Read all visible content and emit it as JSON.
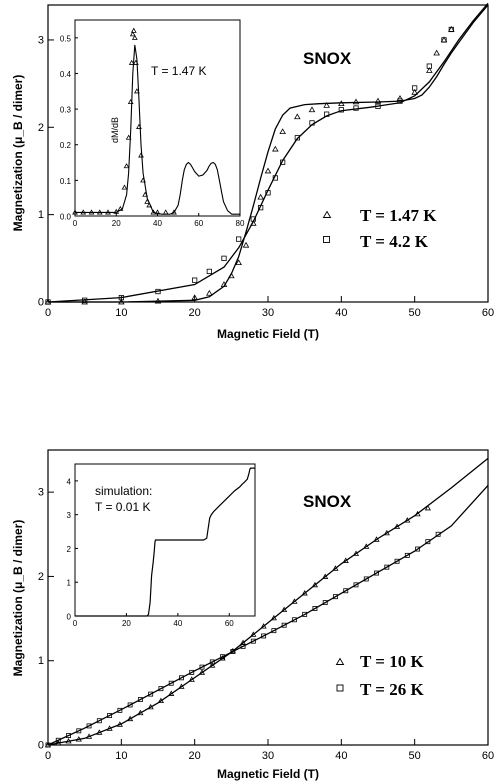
{
  "chart_data": [
    {
      "type": "scatter",
      "title": "SNOX",
      "xlabel": "Magnetic Field (T)",
      "ylabel": "Magnetization (μ_B / dimer)",
      "xlim": [
        0,
        60
      ],
      "ylim": [
        0,
        3.4
      ],
      "xticks": [
        0,
        10,
        20,
        30,
        40,
        50,
        60
      ],
      "yticks": [
        0,
        1,
        2,
        3
      ],
      "legend_position": "right",
      "series": [
        {
          "name": "T = 1.47 K",
          "marker": "triangle",
          "x": [
            0,
            5,
            10,
            15,
            20,
            22,
            24,
            25,
            26,
            27,
            28,
            29,
            30,
            31,
            32,
            34,
            36,
            38,
            40,
            42,
            45,
            48,
            50,
            52,
            53,
            54,
            55
          ],
          "y": [
            0,
            0,
            0,
            0.01,
            0.05,
            0.1,
            0.2,
            0.3,
            0.45,
            0.65,
            0.9,
            1.2,
            1.5,
            1.75,
            1.95,
            2.12,
            2.2,
            2.25,
            2.27,
            2.29,
            2.3,
            2.33,
            2.4,
            2.65,
            2.85,
            3.0,
            3.12
          ]
        },
        {
          "name": "T = 4.2 K",
          "marker": "square",
          "x": [
            0,
            5,
            10,
            15,
            20,
            22,
            24,
            26,
            28,
            29,
            30,
            31,
            32,
            34,
            36,
            38,
            40,
            42,
            45,
            48,
            50,
            52,
            54,
            55
          ],
          "y": [
            0,
            0.02,
            0.05,
            0.12,
            0.25,
            0.35,
            0.5,
            0.72,
            0.95,
            1.08,
            1.25,
            1.42,
            1.6,
            1.88,
            2.05,
            2.15,
            2.2,
            2.22,
            2.24,
            2.3,
            2.45,
            2.7,
            3.0,
            3.12
          ]
        }
      ],
      "fit_curves": [
        {
          "x": [
            0,
            10,
            20,
            22,
            24,
            25,
            26,
            27,
            28,
            29,
            30,
            31,
            32,
            33,
            35,
            37,
            40,
            45,
            48,
            50,
            51,
            52,
            53,
            54,
            55,
            56,
            58,
            60
          ],
          "y": [
            0,
            0,
            0.02,
            0.06,
            0.18,
            0.32,
            0.52,
            0.8,
            1.1,
            1.42,
            1.72,
            1.98,
            2.14,
            2.22,
            2.26,
            2.27,
            2.28,
            2.29,
            2.3,
            2.33,
            2.37,
            2.46,
            2.58,
            2.72,
            2.85,
            2.97,
            3.2,
            3.4
          ]
        },
        {
          "x": [
            0,
            10,
            20,
            24,
            26,
            28,
            30,
            32,
            34,
            36,
            38,
            40,
            44,
            48,
            50,
            52,
            54,
            56,
            58,
            60
          ],
          "y": [
            0,
            0.05,
            0.2,
            0.4,
            0.62,
            0.92,
            1.28,
            1.62,
            1.87,
            2.03,
            2.13,
            2.19,
            2.23,
            2.28,
            2.36,
            2.52,
            2.75,
            3.0,
            3.22,
            3.42
          ]
        }
      ],
      "inset": {
        "type": "scatter",
        "text": "T = 1.47 K",
        "ylabel": "dM/dB",
        "xlim": [
          0,
          80
        ],
        "ylim": [
          0,
          0.55
        ],
        "xticks": [
          0,
          20,
          40,
          60,
          80
        ],
        "yticks": [
          0.0,
          0.1,
          0.2,
          0.3,
          0.4,
          0.5
        ],
        "points": {
          "x": [
            0,
            4,
            8,
            12,
            16,
            20,
            22,
            24,
            25,
            26,
            27,
            27.5,
            28,
            28.5,
            29,
            29.5,
            30,
            31,
            32,
            33,
            34,
            35,
            36,
            38,
            40,
            44,
            48
          ],
          "y": [
            0.01,
            0.01,
            0.01,
            0.01,
            0.01,
            0.012,
            0.02,
            0.08,
            0.14,
            0.22,
            0.32,
            0.43,
            0.51,
            0.52,
            0.5,
            0.43,
            0.35,
            0.25,
            0.17,
            0.1,
            0.06,
            0.04,
            0.03,
            0.01,
            0.01,
            0.01,
            0.01
          ]
        },
        "curve": {
          "x": [
            0,
            20,
            23,
            25,
            26,
            27,
            28,
            29,
            30,
            31,
            32,
            33,
            35,
            38,
            42,
            46,
            48,
            50,
            51,
            52,
            53,
            54,
            55,
            56,
            57,
            58,
            60,
            62,
            64,
            65,
            66,
            67,
            68,
            69,
            70,
            71,
            72,
            74,
            76,
            80
          ],
          "y": [
            0.01,
            0.01,
            0.02,
            0.06,
            0.12,
            0.24,
            0.4,
            0.48,
            0.44,
            0.33,
            0.2,
            0.12,
            0.05,
            0.01,
            0.005,
            0.005,
            0.01,
            0.03,
            0.06,
            0.1,
            0.13,
            0.145,
            0.15,
            0.145,
            0.135,
            0.125,
            0.112,
            0.115,
            0.128,
            0.14,
            0.148,
            0.15,
            0.145,
            0.13,
            0.1,
            0.07,
            0.04,
            0.015,
            0.005,
            0.005
          ]
        }
      }
    },
    {
      "type": "scatter",
      "title": "SNOX",
      "xlabel": "Magnetic Field (T)",
      "ylabel": "Magnetization (μ_B / dimer)",
      "xlim": [
        0,
        60
      ],
      "ylim": [
        0,
        3.5
      ],
      "xticks": [
        0,
        10,
        20,
        30,
        40,
        50,
        60
      ],
      "yticks": [
        0,
        1,
        2,
        3
      ],
      "legend_position": "right",
      "series": [
        {
          "name": "T = 10 K",
          "marker": "triangle",
          "x": [
            0,
            5,
            10,
            15,
            20,
            25,
            30,
            35,
            40,
            45,
            50,
            52
          ],
          "y": [
            0,
            0.08,
            0.25,
            0.5,
            0.8,
            1.1,
            1.45,
            1.8,
            2.15,
            2.45,
            2.72,
            2.82
          ]
        },
        {
          "name": "T = 26 K",
          "marker": "square",
          "x": [
            0,
            5,
            10,
            15,
            20,
            25,
            30,
            35,
            40,
            45,
            50,
            54
          ],
          "y": [
            0,
            0.2,
            0.42,
            0.65,
            0.88,
            1.1,
            1.32,
            1.55,
            1.8,
            2.05,
            2.3,
            2.55
          ]
        }
      ],
      "fit_curves": [
        {
          "x": [
            0,
            5,
            10,
            15,
            20,
            25,
            30,
            35,
            40,
            45,
            50,
            55,
            60
          ],
          "y": [
            0,
            0.08,
            0.25,
            0.5,
            0.8,
            1.1,
            1.45,
            1.8,
            2.15,
            2.45,
            2.72,
            3.05,
            3.4
          ]
        },
        {
          "x": [
            0,
            5,
            10,
            15,
            20,
            25,
            30,
            35,
            40,
            45,
            50,
            55,
            60
          ],
          "y": [
            0,
            0.2,
            0.42,
            0.65,
            0.88,
            1.1,
            1.32,
            1.55,
            1.8,
            2.05,
            2.3,
            2.6,
            3.08
          ]
        }
      ],
      "inset": {
        "type": "line",
        "text": [
          "simulation:",
          "T = 0.01 K"
        ],
        "xlim": [
          0,
          70
        ],
        "ylim": [
          0,
          4.5
        ],
        "xticks": [
          0,
          20,
          40,
          60
        ],
        "yticks": [
          0,
          1,
          2,
          3,
          4
        ],
        "curve": {
          "x": [
            0,
            28,
            28.6,
            29.2,
            29.8,
            30.4,
            30.8,
            31.1,
            31.3,
            32,
            40,
            50,
            51.2,
            51.8,
            52.4,
            53,
            54,
            56,
            58,
            60,
            62,
            64,
            65,
            66,
            67,
            67.6,
            68,
            68.3,
            68.6,
            70
          ],
          "y": [
            0,
            0,
            0.05,
            0.4,
            1.2,
            1.6,
            1.9,
            2.2,
            2.25,
            2.25,
            2.25,
            2.25,
            2.3,
            2.6,
            2.9,
            3.0,
            3.1,
            3.25,
            3.4,
            3.55,
            3.7,
            3.82,
            3.9,
            3.97,
            4.05,
            4.2,
            4.35,
            4.38,
            4.38,
            4.38
          ]
        }
      }
    }
  ],
  "colors": {
    "ink": "#000000",
    "background": "#ffffff"
  }
}
